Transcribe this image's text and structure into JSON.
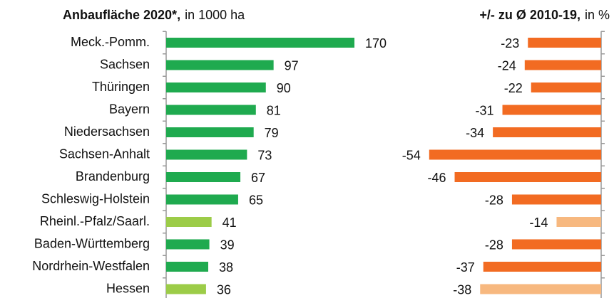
{
  "chart_data": [
    {
      "type": "bar",
      "orientation": "horizontal",
      "title": "Anbaufläche 2020*,",
      "subtitle": "in 1000 ha",
      "categories": [
        "Meck.-Pomm.",
        "Sachsen",
        "Thüringen",
        "Bayern",
        "Niedersachsen",
        "Sachsen-Anhalt",
        "Brandenburg",
        "Schleswig-Holstein",
        "Rheinl.-Pfalz/Saarl.",
        "Baden-Württemberg",
        "Nordrhein-Westfalen",
        "Hessen"
      ],
      "values": [
        170,
        97,
        90,
        81,
        79,
        73,
        67,
        65,
        41,
        39,
        38,
        36
      ],
      "colors": [
        "#1faa4f",
        "#1faa4f",
        "#1faa4f",
        "#1faa4f",
        "#1faa4f",
        "#1faa4f",
        "#1faa4f",
        "#1faa4f",
        "#9ccc48",
        "#1faa4f",
        "#1faa4f",
        "#9ccc48"
      ],
      "xlim": [
        0,
        200
      ]
    },
    {
      "type": "bar",
      "orientation": "horizontal",
      "title": "+/- zu Ø 2010-19,",
      "subtitle": "in %",
      "values": [
        -23,
        -24,
        -22,
        -31,
        -34,
        -54,
        -46,
        -28,
        -14,
        -28,
        -37,
        -38
      ],
      "colors": [
        "#f26b22",
        "#f26b22",
        "#f26b22",
        "#f26b22",
        "#f26b22",
        "#f26b22",
        "#f26b22",
        "#f26b22",
        "#f7b87f",
        "#f26b22",
        "#f26b22",
        "#f7b87f"
      ],
      "xlim": [
        -60,
        0
      ]
    }
  ]
}
